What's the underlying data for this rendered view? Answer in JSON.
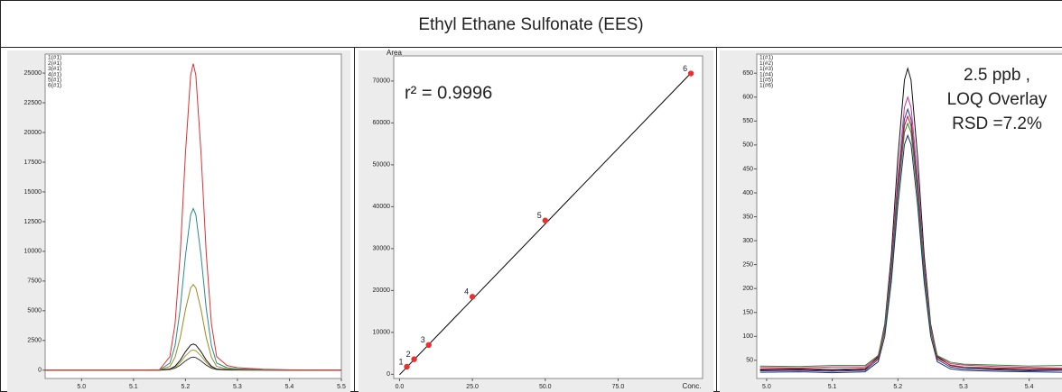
{
  "title": "Ethyl Ethane Sulfonate (EES)",
  "chart_data": [
    {
      "type": "line",
      "x": [
        4.92,
        5.0,
        5.1,
        5.15,
        5.17,
        5.18,
        5.19,
        5.2,
        5.21,
        5.215,
        5.22,
        5.23,
        5.24,
        5.25,
        5.26,
        5.28,
        5.3,
        5.35,
        5.4,
        5.5
      ],
      "series": [
        {
          "name": "1(#1)",
          "color": "#333333",
          "values": [
            0,
            0,
            0,
            2,
            48,
            166,
            419,
            778,
            1058,
            1100,
            1058,
            778,
            419,
            166,
            48,
            17,
            9,
            3,
            1,
            0
          ]
        },
        {
          "name": "2(#1)",
          "color": "#a89a3c",
          "values": [
            0,
            0,
            0,
            3,
            75,
            257,
            648,
            1202,
            1635,
            1700,
            1635,
            1202,
            648,
            257,
            75,
            26,
            14,
            5,
            2,
            0
          ]
        },
        {
          "name": "3(#1)",
          "color": "#111111",
          "values": [
            0,
            0,
            0,
            3,
            97,
            332,
            838,
            1555,
            2116,
            2200,
            2116,
            1555,
            838,
            332,
            97,
            33,
            18,
            7,
            2,
            0
          ]
        },
        {
          "name": "4(#1)",
          "color": "#9a8a20",
          "values": [
            0,
            0,
            0,
            11,
            317,
            1087,
            2743,
            5090,
            6926,
            7200,
            6926,
            5090,
            2743,
            1087,
            317,
            108,
            58,
            22,
            7,
            0
          ]
        },
        {
          "name": "5(#1)",
          "color": "#2a8a8a",
          "values": [
            0,
            0,
            0,
            20,
            598,
            2054,
            5182,
            9615,
            13083,
            13600,
            13083,
            9615,
            5182,
            2054,
            598,
            204,
            109,
            41,
            14,
            0
          ]
        },
        {
          "name": "6(#1)",
          "color": "#e03030",
          "values": [
            0,
            0,
            0,
            39,
            1135,
            3896,
            9830,
            18241,
            24820,
            25800,
            24820,
            18241,
            9830,
            3896,
            1135,
            387,
            206,
            77,
            26,
            0
          ]
        }
      ],
      "xlim": [
        4.93,
        5.5
      ],
      "xticks": [
        {
          "value": 5.0,
          "label": "5.0"
        },
        5.1,
        5.2,
        5.3,
        5.4,
        5.5
      ],
      "ylim": [
        -700,
        26600
      ],
      "yticks": [
        0,
        2500,
        5000,
        7500,
        10000,
        12500,
        15000,
        17500,
        20000,
        22500,
        25000
      ]
    },
    {
      "type": "scatter",
      "y_label": "Area",
      "x_label": "Conc.",
      "annotation": "r² = 0.9996",
      "point_labels": [
        "1",
        "2",
        "3",
        "4",
        "5",
        "6"
      ],
      "x": [
        2.5,
        5,
        10,
        25,
        50,
        100
      ],
      "values": [
        1800,
        3600,
        7000,
        18500,
        36700,
        71800
      ],
      "color": "#e83030",
      "trendline": {
        "x": [
          0,
          100
        ],
        "values": [
          -100,
          71900
        ],
        "color": "#000000"
      },
      "xlim": [
        -2,
        104
      ],
      "xticks": [
        {
          "value": 0,
          "label": "0.0"
        },
        {
          "value": 25,
          "label": "25.0"
        },
        {
          "value": 50,
          "label": "50.0"
        },
        {
          "value": 75,
          "label": "75.0"
        }
      ],
      "ylim": [
        -1000,
        76000
      ],
      "yticks": [
        0,
        10000,
        20000,
        30000,
        40000,
        50000,
        60000,
        70000
      ]
    },
    {
      "type": "line",
      "annotation": [
        "2.5 ppb ,",
        "LOQ Overlay",
        "RSD =7.2%"
      ],
      "x": [
        4.99,
        5.05,
        5.1,
        5.15,
        5.17,
        5.18,
        5.19,
        5.2,
        5.21,
        5.215,
        5.22,
        5.23,
        5.24,
        5.25,
        5.26,
        5.28,
        5.3,
        5.35,
        5.4,
        5.45
      ],
      "series": [
        {
          "name": "1(#1)",
          "color": "#111111",
          "values": [
            30,
            31,
            29,
            31,
            58,
            125,
            270,
            475,
            636,
            660,
            636,
            475,
            270,
            125,
            58,
            39,
            35,
            32,
            30,
            31
          ]
        },
        {
          "name": "1(#2)",
          "color": "#cc3399",
          "values": [
            35,
            34,
            36,
            36,
            60,
            120,
            250,
            434,
            579,
            600,
            579,
            434,
            250,
            120,
            60,
            43,
            40,
            37,
            35,
            34
          ]
        },
        {
          "name": "1(#3)",
          "color": "#2b3a8c",
          "values": [
            28,
            29,
            27,
            29,
            52,
            111,
            236,
            415,
            554,
            575,
            554,
            415,
            236,
            111,
            52,
            36,
            32,
            30,
            28,
            29
          ]
        },
        {
          "name": "1(#4)",
          "color": "#cc2222",
          "values": [
            32,
            33,
            31,
            33,
            55,
            112,
            233,
            405,
            540,
            560,
            540,
            405,
            233,
            112,
            55,
            40,
            36,
            34,
            33,
            32
          ]
        },
        {
          "name": "1(#5)",
          "color": "#2e8b2e",
          "values": [
            38,
            37,
            39,
            39,
            60,
            115,
            231,
            396,
            526,
            545,
            526,
            396,
            231,
            115,
            60,
            46,
            42,
            40,
            38,
            39
          ]
        },
        {
          "name": "1(#6)",
          "color": "#1f2f6f",
          "values": [
            25,
            26,
            24,
            26,
            47,
            100,
            214,
            375,
            501,
            520,
            501,
            375,
            214,
            100,
            47,
            32,
            29,
            27,
            26,
            25
          ]
        }
      ],
      "xlim": [
        4.985,
        5.45
      ],
      "xticks": [
        {
          "value": 5.0,
          "label": "5.0"
        },
        5.1,
        5.2,
        5.3,
        5.4
      ],
      "ylim": [
        12,
        690
      ],
      "yticks": [
        50,
        100,
        150,
        200,
        250,
        300,
        350,
        400,
        450,
        500,
        550,
        600,
        650
      ]
    }
  ]
}
